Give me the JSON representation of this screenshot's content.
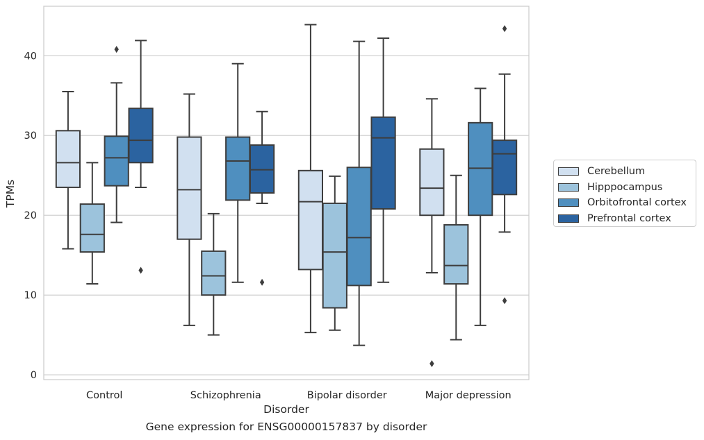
{
  "chart_data": {
    "type": "box",
    "title": "Gene expression for ENSG00000157837 by disorder",
    "xlabel": "Disorder",
    "ylabel": "TPMs",
    "ylim": [
      -0.6,
      46.2
    ],
    "yticks": [
      0,
      10,
      20,
      30,
      40
    ],
    "grid": "horizontal",
    "legend_position": "right",
    "categories": [
      "Control",
      "Schizophrenia",
      "Bipolar disorder",
      "Major depression"
    ],
    "series": [
      {
        "name": "Cerebellum",
        "color": "#d1e0f0",
        "boxes": [
          {
            "whisker_low": 15.8,
            "q1": 23.5,
            "median": 26.6,
            "q3": 30.6,
            "whisker_high": 35.5,
            "outliers": []
          },
          {
            "whisker_low": 6.2,
            "q1": 17.0,
            "median": 23.2,
            "q3": 29.8,
            "whisker_high": 35.2,
            "outliers": []
          },
          {
            "whisker_low": 5.3,
            "q1": 13.2,
            "median": 21.7,
            "q3": 25.6,
            "whisker_high": 43.9,
            "outliers": []
          },
          {
            "whisker_low": 12.8,
            "q1": 20.0,
            "median": 23.4,
            "q3": 28.3,
            "whisker_high": 34.6,
            "outliers": [
              1.4
            ]
          }
        ]
      },
      {
        "name": "Hipppocampus",
        "color": "#9cc3dc",
        "boxes": [
          {
            "whisker_low": 11.4,
            "q1": 15.4,
            "median": 17.6,
            "q3": 21.4,
            "whisker_high": 26.6,
            "outliers": []
          },
          {
            "whisker_low": 5.0,
            "q1": 10.0,
            "median": 12.4,
            "q3": 15.5,
            "whisker_high": 20.2,
            "outliers": []
          },
          {
            "whisker_low": 5.6,
            "q1": 8.4,
            "median": 15.4,
            "q3": 21.5,
            "whisker_high": 24.9,
            "outliers": []
          },
          {
            "whisker_low": 4.4,
            "q1": 11.4,
            "median": 13.7,
            "q3": 18.8,
            "whisker_high": 25.0,
            "outliers": []
          }
        ]
      },
      {
        "name": "Orbitofrontal cortex",
        "color": "#4f8fbf",
        "boxes": [
          {
            "whisker_low": 19.1,
            "q1": 23.7,
            "median": 27.2,
            "q3": 29.9,
            "whisker_high": 36.6,
            "outliers": [
              40.8
            ]
          },
          {
            "whisker_low": 11.6,
            "q1": 21.9,
            "median": 26.8,
            "q3": 29.8,
            "whisker_high": 39.0,
            "outliers": []
          },
          {
            "whisker_low": 3.7,
            "q1": 11.2,
            "median": 17.2,
            "q3": 26.0,
            "whisker_high": 41.8,
            "outliers": []
          },
          {
            "whisker_low": 6.2,
            "q1": 20.0,
            "median": 25.9,
            "q3": 31.6,
            "whisker_high": 35.9,
            "outliers": []
          }
        ]
      },
      {
        "name": "Prefrontal cortex",
        "color": "#2b63a0",
        "boxes": [
          {
            "whisker_low": 23.5,
            "q1": 26.6,
            "median": 29.4,
            "q3": 33.4,
            "whisker_high": 41.9,
            "outliers": [
              13.1
            ]
          },
          {
            "whisker_low": 21.5,
            "q1": 22.8,
            "median": 25.7,
            "q3": 28.8,
            "whisker_high": 33.0,
            "outliers": [
              11.6
            ]
          },
          {
            "whisker_low": 11.6,
            "q1": 20.8,
            "median": 29.7,
            "q3": 32.3,
            "whisker_high": 42.2,
            "outliers": []
          },
          {
            "whisker_low": 17.9,
            "q1": 22.6,
            "median": 27.7,
            "q3": 29.4,
            "whisker_high": 37.7,
            "outliers": [
              9.3,
              43.4
            ]
          }
        ]
      }
    ]
  }
}
